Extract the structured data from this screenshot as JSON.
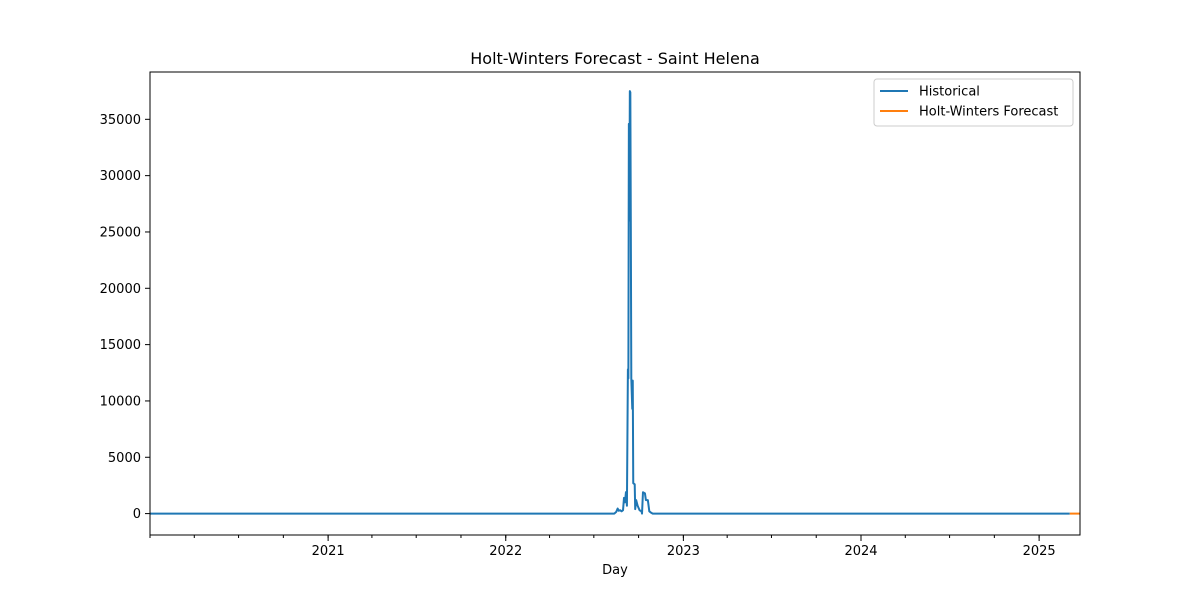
{
  "chart_data": {
    "type": "line",
    "title": "Holt-Winters Forecast - Saint Helena",
    "xlabel": "Day",
    "ylabel": "",
    "xlim": [
      "2020-01-01",
      "2025-03-26"
    ],
    "ylim": [
      -1900,
      39200
    ],
    "x_ticks": [
      "2021",
      "2022",
      "2023",
      "2024",
      "2025"
    ],
    "y_ticks": [
      0,
      5000,
      10000,
      15000,
      20000,
      25000,
      30000,
      35000
    ],
    "legend_position": "top-right",
    "grid": false,
    "series": [
      {
        "name": "Historical",
        "color": "#1f77b4",
        "points": [
          [
            "2020-01-01",
            0
          ],
          [
            "2022-08-12",
            0
          ],
          [
            "2022-08-16",
            150
          ],
          [
            "2022-08-19",
            450
          ],
          [
            "2022-08-21",
            250
          ],
          [
            "2022-08-24",
            300
          ],
          [
            "2022-08-27",
            200
          ],
          [
            "2022-08-30",
            300
          ],
          [
            "2022-09-01",
            1400
          ],
          [
            "2022-09-03",
            1000
          ],
          [
            "2022-09-05",
            1900
          ],
          [
            "2022-09-07",
            700
          ],
          [
            "2022-09-09",
            12800
          ],
          [
            "2022-09-10",
            12000
          ],
          [
            "2022-09-11",
            34600
          ],
          [
            "2022-09-12",
            26000
          ],
          [
            "2022-09-13",
            37500
          ],
          [
            "2022-09-14",
            37400
          ],
          [
            "2022-09-15",
            25500
          ],
          [
            "2022-09-16",
            12000
          ],
          [
            "2022-09-18",
            9300
          ],
          [
            "2022-09-19",
            11800
          ],
          [
            "2022-09-20",
            2700
          ],
          [
            "2022-09-23",
            2600
          ],
          [
            "2022-09-24",
            400
          ],
          [
            "2022-09-26",
            1200
          ],
          [
            "2022-09-29",
            700
          ],
          [
            "2022-10-03",
            300
          ],
          [
            "2022-10-07",
            200
          ],
          [
            "2022-10-08",
            0
          ],
          [
            "2022-10-10",
            1900
          ],
          [
            "2022-10-14",
            1800
          ],
          [
            "2022-10-16",
            1200
          ],
          [
            "2022-10-20",
            1200
          ],
          [
            "2022-10-23",
            200
          ],
          [
            "2022-10-26",
            100
          ],
          [
            "2022-10-30",
            0
          ],
          [
            "2025-03-05",
            0
          ]
        ]
      },
      {
        "name": "Holt-Winters Forecast",
        "color": "#ff7f0e",
        "points": [
          [
            "2025-03-05",
            0
          ],
          [
            "2025-03-26",
            0
          ]
        ]
      }
    ]
  }
}
